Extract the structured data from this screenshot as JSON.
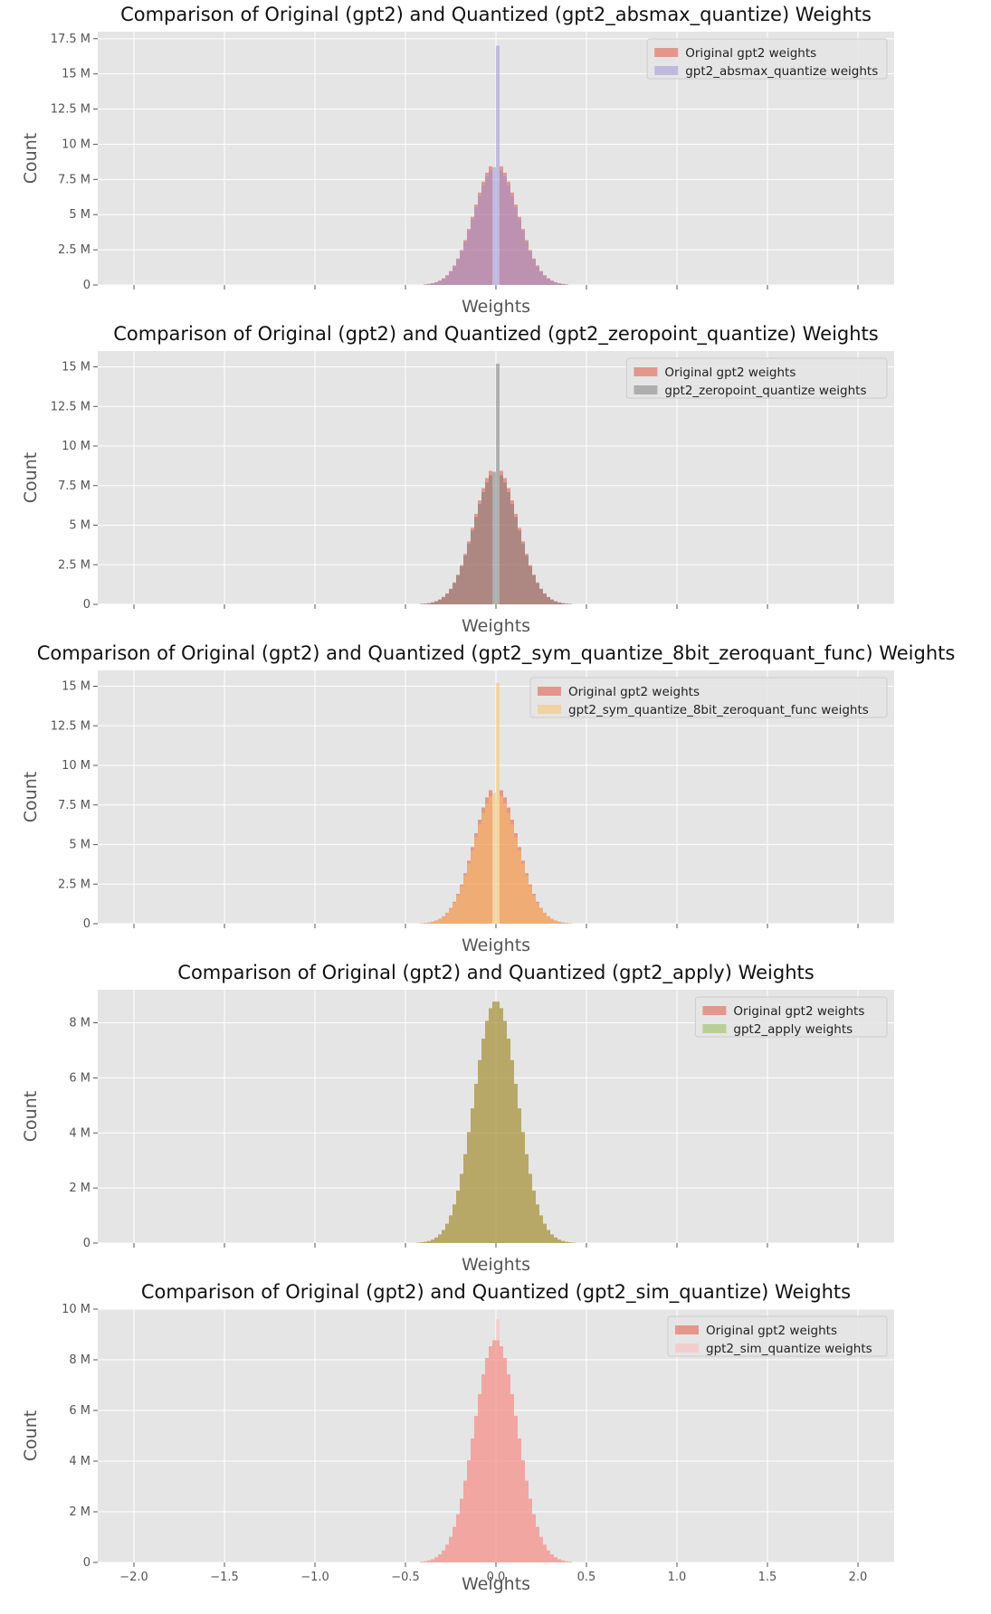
{
  "chart_data": [
    {
      "type": "histogram",
      "title": "Comparison of Original (gpt2) and Quantized (gpt2_absmax_quantize) Weights",
      "xlabel": "Weights",
      "ylabel": "Count",
      "xlim": [
        -2.2,
        2.2
      ],
      "ylim": [
        0,
        18000000
      ],
      "yticks": [
        0,
        2500000,
        5000000,
        7500000,
        10000000,
        12500000,
        15000000,
        17500000
      ],
      "ytick_labels": [
        "0",
        "2.5 M",
        "5 M",
        "7.5 M",
        "10 M",
        "12.5 M",
        "15 M",
        "17.5 M"
      ],
      "legend_position": "top-right",
      "grid": true,
      "series": [
        {
          "name": "Original gpt2 weights",
          "color": "#E24A33",
          "peak": 8700000,
          "sigma": 0.12,
          "dip_value": 0
        },
        {
          "name": "gpt2_absmax_quantize weights",
          "color": "#988ED5",
          "peak": 8400000,
          "sigma": 0.12,
          "spike": 17000000
        }
      ]
    },
    {
      "type": "histogram",
      "title": "Comparison of Original (gpt2) and Quantized (gpt2_zeropoint_quantize) Weights",
      "xlabel": "Weights",
      "ylabel": "Count",
      "xlim": [
        -2.2,
        2.2
      ],
      "ylim": [
        0,
        16000000
      ],
      "yticks": [
        0,
        2500000,
        5000000,
        7500000,
        10000000,
        12500000,
        15000000
      ],
      "ytick_labels": [
        "0",
        "2.5 M",
        "5 M",
        "7.5 M",
        "10 M",
        "12.5 M",
        "15 M"
      ],
      "legend_position": "top-right",
      "grid": true,
      "series": [
        {
          "name": "Original gpt2 weights",
          "color": "#E24A33",
          "peak": 8700000,
          "sigma": 0.12,
          "dip_value": 0
        },
        {
          "name": "gpt2_zeropoint_quantize weights",
          "color": "#777777",
          "peak": 8400000,
          "sigma": 0.12,
          "spike": 15200000
        }
      ]
    },
    {
      "type": "histogram",
      "title": "Comparison of Original (gpt2) and Quantized (gpt2_sym_quantize_8bit_zeroquant_func) Weights",
      "xlabel": "Weights",
      "ylabel": "Count",
      "xlim": [
        -2.2,
        2.2
      ],
      "ylim": [
        0,
        16000000
      ],
      "yticks": [
        0,
        2500000,
        5000000,
        7500000,
        10000000,
        12500000,
        15000000
      ],
      "ytick_labels": [
        "0",
        "2.5 M",
        "5 M",
        "7.5 M",
        "10 M",
        "12.5 M",
        "15 M"
      ],
      "legend_position": "top-right",
      "grid": true,
      "series": [
        {
          "name": "Original gpt2 weights",
          "color": "#E24A33",
          "peak": 8700000,
          "sigma": 0.12,
          "dip_value": 0
        },
        {
          "name": "gpt2_sym_quantize_8bit_zeroquant_func weights",
          "color": "#FBC15E",
          "peak": 8300000,
          "sigma": 0.12,
          "spike": 15200000
        }
      ]
    },
    {
      "type": "histogram",
      "title": "Comparison of Original (gpt2) and Quantized (gpt2_apply) Weights",
      "xlabel": "Weights",
      "ylabel": "Count",
      "xlim": [
        -2.2,
        2.2
      ],
      "ylim": [
        0,
        9200000
      ],
      "yticks": [
        0,
        2000000,
        4000000,
        6000000,
        8000000
      ],
      "ytick_labels": [
        "0",
        "2 M",
        "4 M",
        "6 M",
        "8 M"
      ],
      "legend_position": "top-right",
      "grid": true,
      "series": [
        {
          "name": "Original gpt2 weights",
          "color": "#E24A33",
          "peak": 8800000,
          "sigma": 0.12
        },
        {
          "name": "gpt2_apply weights",
          "color": "#8EBA42",
          "peak": 8800000,
          "sigma": 0.12
        }
      ]
    },
    {
      "type": "histogram",
      "title": "Comparison of Original (gpt2) and Quantized (gpt2_sim_quantize) Weights",
      "xlabel": "Weights",
      "ylabel": "Count",
      "xlim": [
        -2.2,
        2.2
      ],
      "ylim": [
        0,
        10000000
      ],
      "yticks": [
        0,
        2000000,
        4000000,
        6000000,
        8000000,
        10000000
      ],
      "ytick_labels": [
        "0",
        "2 M",
        "4 M",
        "6 M",
        "8 M",
        "10 M"
      ],
      "xticks": [
        -2.0,
        -1.5,
        -1.0,
        -0.5,
        0.0,
        0.5,
        1.0,
        1.5,
        2.0
      ],
      "xtick_labels": [
        "−2.0",
        "−1.5",
        "−1.0",
        "−0.5",
        "0.0",
        "0.5",
        "1.0",
        "1.5",
        "2.0"
      ],
      "legend_position": "top-right",
      "grid": true,
      "series": [
        {
          "name": "Original gpt2 weights",
          "color": "#E24A33",
          "peak": 8800000,
          "sigma": 0.12
        },
        {
          "name": "gpt2_sim_quantize weights",
          "color": "#FFB5B8",
          "peak": 8800000,
          "sigma": 0.12,
          "spike": 9600000
        }
      ]
    }
  ]
}
